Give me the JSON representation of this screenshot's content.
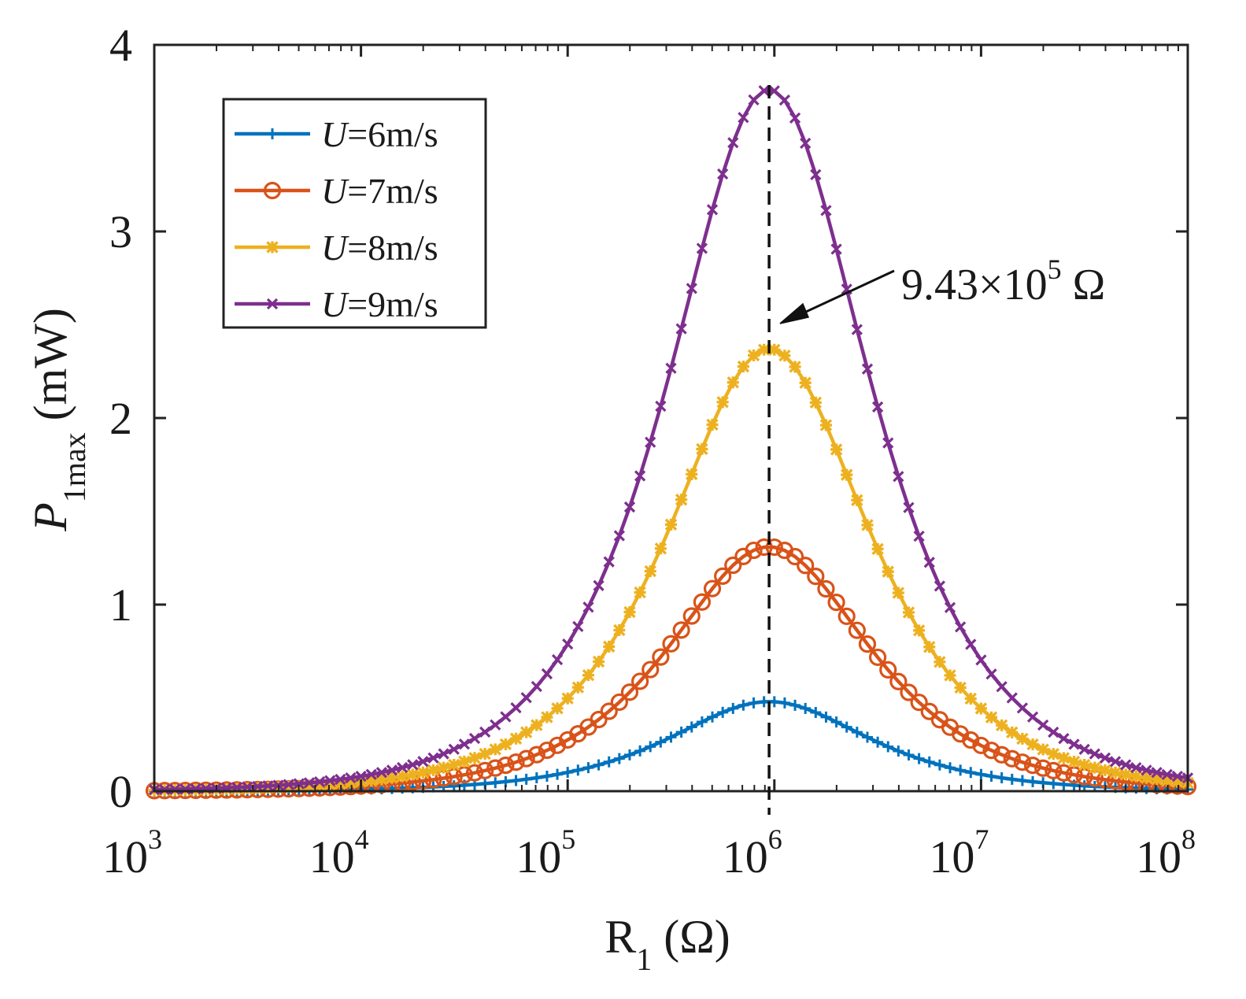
{
  "chart_data": {
    "type": "line",
    "xscale": "log",
    "xlim": [
      1000,
      100000000
    ],
    "ylim": [
      0,
      4
    ],
    "x_ticks": [
      {
        "base": "10",
        "exp": "3"
      },
      {
        "base": "10",
        "exp": "4"
      },
      {
        "base": "10",
        "exp": "5"
      },
      {
        "base": "10",
        "exp": "6"
      },
      {
        "base": "10",
        "exp": "7"
      },
      {
        "base": "10",
        "exp": "8"
      }
    ],
    "y_ticks": [
      "0",
      "1",
      "2",
      "3",
      "4"
    ],
    "xlabel": {
      "main": "R",
      "sub": "1",
      "unit": " (Ω)"
    },
    "ylabel": {
      "main": "P",
      "sub": "1max",
      "unit": " (mW)"
    },
    "peak_resistance": 943000,
    "series": [
      {
        "name": "U=6m/s",
        "var": "U",
        "rest": "=6m/s",
        "color": "#0072BD",
        "marker": "plus",
        "peak": 0.48
      },
      {
        "name": "U=7m/s",
        "var": "U",
        "rest": "=7m/s",
        "color": "#D95319",
        "marker": "circle",
        "peak": 1.31
      },
      {
        "name": "U=8m/s",
        "var": "U",
        "rest": "=8m/s",
        "color": "#EDB120",
        "marker": "asterisk",
        "peak": 2.37
      },
      {
        "name": "U=9m/s",
        "var": "U",
        "rest": "=9m/s",
        "color": "#7E2F8E",
        "marker": "cross",
        "peak": 3.76
      }
    ],
    "points_per_series": 101,
    "annotation": {
      "mantissa": "9.43×10",
      "exp": "5",
      "unit": " Ω"
    },
    "legend": {
      "position": "top-left"
    }
  }
}
